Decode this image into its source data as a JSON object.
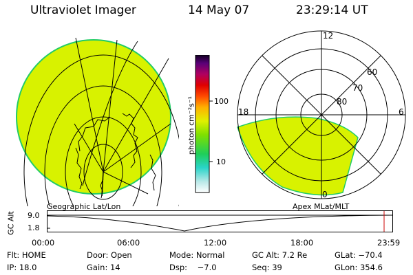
{
  "header": {
    "instrument": "Ultraviolet Imager",
    "date": "14 May 07",
    "time": "23:29:14 UT"
  },
  "colorbar": {
    "unit_label": "photon cm⁻²s⁻¹",
    "ticks": [
      "100",
      "10"
    ]
  },
  "polar_plot": {
    "mlt_labels": [
      "12",
      "18",
      "6",
      "0"
    ],
    "lat_labels": [
      "60",
      "70",
      "80"
    ]
  },
  "coord_labels": {
    "left": "Geographic Lat/Lon",
    "right": "Apex MLat/MLT"
  },
  "altitude_plot": {
    "ylabel": "GC Alt",
    "ymax_label": "9.0",
    "ymin_label": "1.8",
    "time_ticks": [
      "00:00",
      "06:00",
      "12:00",
      "18:00",
      "23:59"
    ]
  },
  "info": {
    "row1": {
      "flt": "Flt: HOME",
      "door": "Door: Open",
      "mode": "Mode: Normal",
      "gc_alt": "GC Alt: 7.2 Re",
      "glat": "GLat: −70.4"
    },
    "row2": {
      "ip": "IP: 18.0",
      "gain": "Gain: 14",
      "dsp": "Dsp:    −7.0",
      "seq": "Seq: 39",
      "glon": "GLon: 354.6"
    }
  },
  "colors": {
    "aurora_fill": "#d8f200",
    "aurora_edge": "#22cc66",
    "marker": "#cc0000"
  }
}
